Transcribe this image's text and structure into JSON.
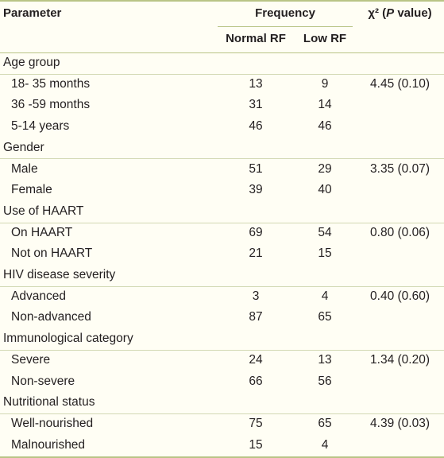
{
  "header": {
    "parameter": "Parameter",
    "frequency": "Frequency",
    "normal_rf": "Normal RF",
    "low_rf": "Low RF",
    "chi_symbol": "χ²",
    "chi_p": "P",
    "chi_value": "value)"
  },
  "rows": [
    {
      "label": "Age group",
      "type": "group"
    },
    {
      "label": "18- 35 months",
      "type": "sub",
      "normal": "13",
      "low": "9",
      "chi": "4.45 (0.10)"
    },
    {
      "label": "36 -59 months",
      "type": "sub",
      "normal": "31",
      "low": "14",
      "chi": ""
    },
    {
      "label": "5-14 years",
      "type": "sub",
      "normal": "46",
      "low": "46",
      "chi": ""
    },
    {
      "label": "Gender",
      "type": "group"
    },
    {
      "label": "Male",
      "type": "sub",
      "normal": "51",
      "low": "29",
      "chi": "3.35 (0.07)"
    },
    {
      "label": "Female",
      "type": "sub",
      "normal": "39",
      "low": "40",
      "chi": ""
    },
    {
      "label": "Use of HAART",
      "type": "group"
    },
    {
      "label": "On HAART",
      "type": "sub",
      "normal": "69",
      "low": "54",
      "chi": "0.80 (0.06)"
    },
    {
      "label": "Not on HAART",
      "type": "sub",
      "normal": "21",
      "low": "15",
      "chi": ""
    },
    {
      "label": "HIV disease severity",
      "type": "group"
    },
    {
      "label": "Advanced",
      "type": "sub",
      "normal": "3",
      "low": "4",
      "chi": "0.40 (0.60)"
    },
    {
      "label": "Non-advanced",
      "type": "sub",
      "normal": "87",
      "low": "65",
      "chi": ""
    },
    {
      "label": "Immunological category",
      "type": "group"
    },
    {
      "label": "Severe",
      "type": "sub",
      "normal": "24",
      "low": "13",
      "chi": "1.34 (0.20)"
    },
    {
      "label": "Non-severe",
      "type": "sub",
      "normal": "66",
      "low": "56",
      "chi": ""
    },
    {
      "label": "Nutritional status",
      "type": "group"
    },
    {
      "label": "Well-nourished",
      "type": "sub",
      "normal": "75",
      "low": "65",
      "chi": "4.39 (0.03)"
    },
    {
      "label": "Malnourished",
      "type": "sub",
      "normal": "15",
      "low": "4",
      "chi": ""
    }
  ]
}
